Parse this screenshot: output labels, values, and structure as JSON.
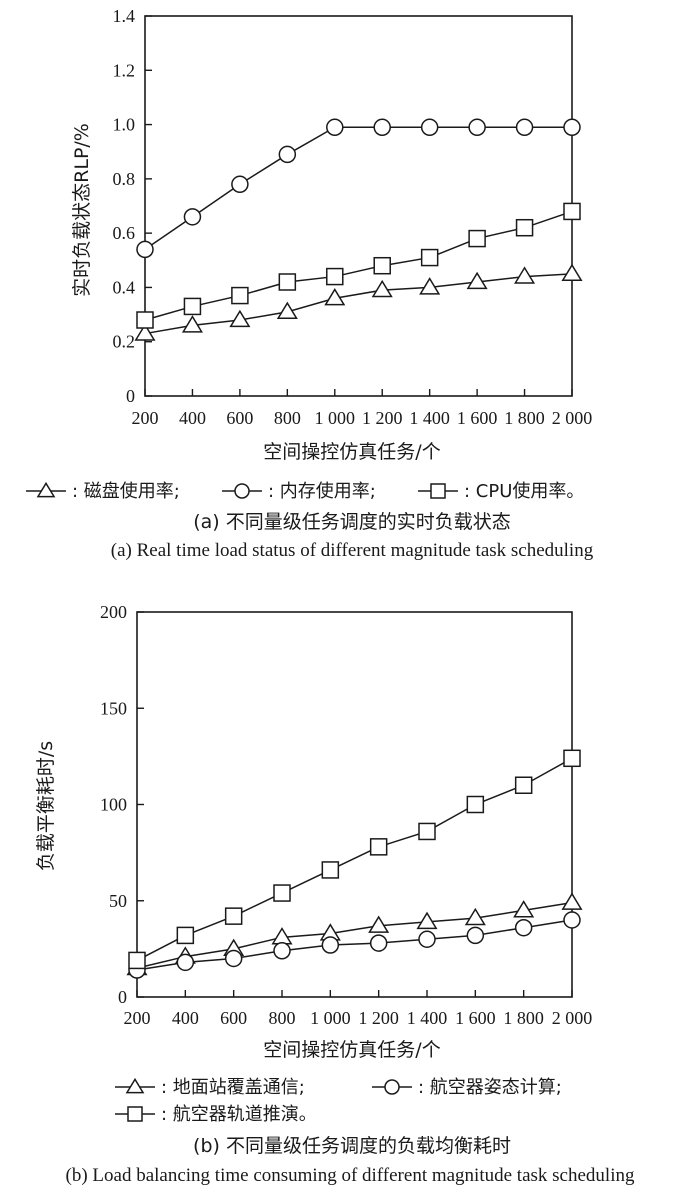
{
  "chart_data": [
    {
      "type": "line",
      "ylabel": "实时负载状态RLP/%",
      "xlabel": "空间操控仿真任务/个",
      "xlim": [
        200,
        2000
      ],
      "ylim": [
        0,
        1.4
      ],
      "x": [
        200,
        400,
        600,
        800,
        1000,
        1200,
        1400,
        1600,
        1800,
        2000
      ],
      "x_tick_labels": [
        "200",
        "400",
        "600",
        "800",
        "1 000",
        "1 200",
        "1 400",
        "1 600",
        "1 800",
        "2 000"
      ],
      "y_ticks": [
        0,
        0.2,
        0.4,
        0.6,
        0.8,
        1.0,
        1.2,
        1.4
      ],
      "y_tick_labels": [
        "0",
        "0.2",
        "0.4",
        "0.6",
        "0.8",
        "1.0",
        "1.2",
        "1.4"
      ],
      "grid": false,
      "series": [
        {
          "name": "磁盘使用率;",
          "marker": "triangle",
          "values": [
            0.23,
            0.26,
            0.28,
            0.31,
            0.36,
            0.39,
            0.4,
            0.42,
            0.44,
            0.45
          ]
        },
        {
          "name": "内存使用率;",
          "marker": "circle",
          "values": [
            0.54,
            0.66,
            0.78,
            0.89,
            0.99,
            0.99,
            0.99,
            0.99,
            0.99,
            0.99
          ]
        },
        {
          "name": "CPU使用率。",
          "marker": "square",
          "values": [
            0.28,
            0.33,
            0.37,
            0.42,
            0.44,
            0.48,
            0.51,
            0.58,
            0.62,
            0.68
          ]
        }
      ],
      "legend_placement": "below",
      "legend_separator": ": ",
      "caption_zh": "(a) 不同量级任务调度的实时负载状态",
      "caption_en": "(a) Real time load status of different magnitude task scheduling"
    },
    {
      "type": "line",
      "ylabel": "负载平衡耗时/s",
      "xlabel": "空间操控仿真任务/个",
      "xlim": [
        200,
        2000
      ],
      "ylim": [
        0,
        200
      ],
      "x": [
        200,
        400,
        600,
        800,
        1000,
        1200,
        1400,
        1600,
        1800,
        2000
      ],
      "x_tick_labels": [
        "200",
        "400",
        "600",
        "800",
        "1 000",
        "1 200",
        "1 400",
        "1 600",
        "1 800",
        "2 000"
      ],
      "y_ticks": [
        0,
        50,
        100,
        150,
        200
      ],
      "y_tick_labels": [
        "0",
        "50",
        "100",
        "150",
        "200"
      ],
      "grid": false,
      "series": [
        {
          "name": "地面站覆盖通信;",
          "marker": "triangle",
          "values": [
            15,
            21,
            25,
            31,
            33,
            37,
            39,
            41,
            45,
            49
          ]
        },
        {
          "name": "航空器姿态计算;",
          "marker": "circle",
          "values": [
            14,
            18,
            20,
            24,
            27,
            28,
            30,
            32,
            36,
            40
          ]
        },
        {
          "name": "航空器轨道推演。",
          "marker": "square",
          "values": [
            19,
            32,
            42,
            54,
            66,
            78,
            86,
            100,
            110,
            124
          ]
        }
      ],
      "legend_placement": "below",
      "legend_separator": ": ",
      "caption_zh": "(b) 不同量级任务调度的负载均衡耗时",
      "caption_en": "(b) Load balancing time consuming of different magnitude task scheduling"
    }
  ]
}
